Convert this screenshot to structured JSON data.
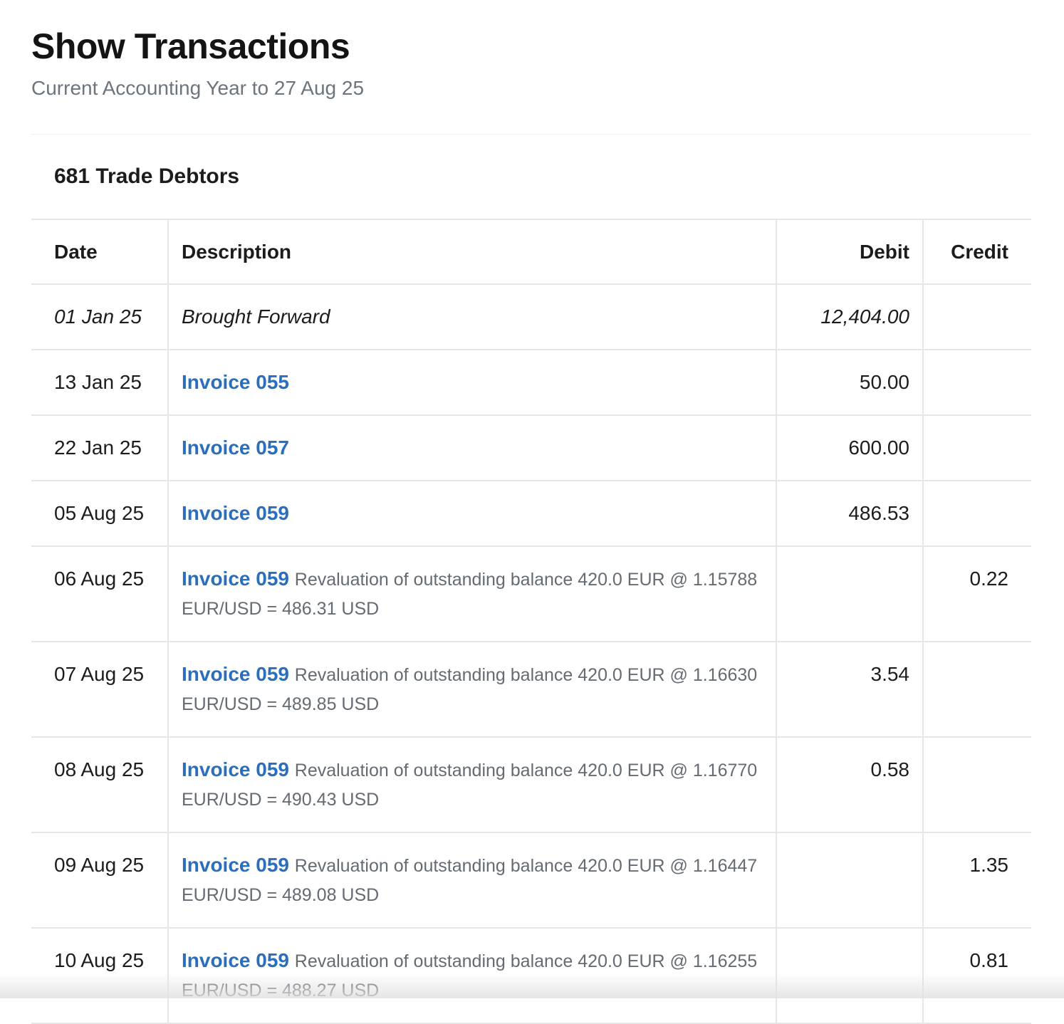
{
  "page": {
    "title": "Show Transactions",
    "subtitle": "Current Accounting Year to 27 Aug 25"
  },
  "account": {
    "title": "681 Trade Debtors"
  },
  "table": {
    "headers": {
      "date": "Date",
      "description": "Description",
      "debit": "Debit",
      "credit": "Credit"
    },
    "rows": [
      {
        "date": "01 Jan 25",
        "link": "",
        "text": "Brought Forward",
        "note": "",
        "debit": "12,404.00",
        "credit": ""
      },
      {
        "date": "13 Jan 25",
        "link": "Invoice 055",
        "text": "",
        "note": "",
        "debit": "50.00",
        "credit": ""
      },
      {
        "date": "22 Jan 25",
        "link": "Invoice 057",
        "text": "",
        "note": "",
        "debit": "600.00",
        "credit": ""
      },
      {
        "date": "05 Aug 25",
        "link": "Invoice 059",
        "text": "",
        "note": "",
        "debit": "486.53",
        "credit": ""
      },
      {
        "date": "06 Aug 25",
        "link": "Invoice 059",
        "text": "",
        "note": "Revaluation of outstanding balance 420.0 EUR @ 1.15788 EUR/USD = 486.31 USD",
        "debit": "",
        "credit": "0.22"
      },
      {
        "date": "07 Aug 25",
        "link": "Invoice 059",
        "text": "",
        "note": "Revaluation of outstanding balance 420.0 EUR @ 1.16630 EUR/USD = 489.85 USD",
        "debit": "3.54",
        "credit": ""
      },
      {
        "date": "08 Aug 25",
        "link": "Invoice 059",
        "text": "",
        "note": "Revaluation of outstanding balance 420.0 EUR @ 1.16770 EUR/USD = 490.43 USD",
        "debit": "0.58",
        "credit": ""
      },
      {
        "date": "09 Aug 25",
        "link": "Invoice 059",
        "text": "",
        "note": "Revaluation of outstanding balance 420.0 EUR @ 1.16447 EUR/USD = 489.08 USD",
        "debit": "",
        "credit": "1.35"
      },
      {
        "date": "10 Aug 25",
        "link": "Invoice 059",
        "text": "",
        "note": "Revaluation of outstanding balance 420.0 EUR @ 1.16255 EUR/USD = 488.27 USD",
        "debit": "",
        "credit": "0.81"
      }
    ]
  },
  "colors": {
    "link": "#2a6ebd",
    "muted_text": "#646b72",
    "border": "#e6e6e6"
  }
}
